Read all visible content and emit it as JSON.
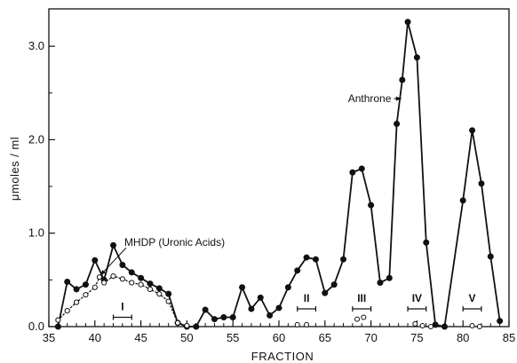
{
  "chart_data": {
    "type": "line",
    "title": "",
    "xlabel": "FRACTION",
    "ylabel": "μmoles / ml",
    "xlim": [
      35,
      85
    ],
    "ylim": [
      0,
      3.4
    ],
    "x_ticks": [
      35,
      40,
      45,
      50,
      55,
      60,
      65,
      70,
      75,
      80,
      85
    ],
    "y_ticks": [
      0.0,
      1.0,
      2.0,
      3.0
    ],
    "y_tick_labels": [
      "0.0",
      "1.0",
      "2.0",
      "3.0"
    ],
    "grid": false,
    "series": [
      {
        "name": "Anthrone",
        "style": "solid-filled",
        "color": "#111111",
        "points": [
          [
            36,
            0.0
          ],
          [
            37,
            0.48
          ],
          [
            38,
            0.4
          ],
          [
            39,
            0.45
          ],
          [
            40,
            0.71
          ],
          [
            41,
            0.5
          ],
          [
            42,
            0.87
          ],
          [
            43,
            0.66
          ],
          [
            44,
            0.58
          ],
          [
            45,
            0.52
          ],
          [
            46,
            0.46
          ],
          [
            47,
            0.41
          ],
          [
            48,
            0.35
          ],
          [
            49,
            0.04
          ],
          [
            50,
            0.0
          ],
          [
            51,
            0.0
          ],
          [
            52,
            0.18
          ],
          [
            53,
            0.08
          ],
          [
            54,
            0.1
          ],
          [
            55,
            0.1
          ],
          [
            56,
            0.42
          ],
          [
            57,
            0.19
          ],
          [
            58,
            0.31
          ],
          [
            59,
            0.12
          ],
          [
            60,
            0.2
          ],
          [
            61,
            0.42
          ],
          [
            62,
            0.6
          ],
          [
            63,
            0.74
          ],
          [
            64,
            0.72
          ],
          [
            65,
            0.36
          ],
          [
            66,
            0.45
          ],
          [
            67,
            0.72
          ],
          [
            68,
            1.65
          ],
          [
            69,
            1.69
          ],
          [
            70,
            1.3
          ],
          [
            71,
            0.47
          ],
          [
            72,
            0.52
          ],
          [
            72.8,
            2.17
          ],
          [
            73.4,
            2.64
          ],
          [
            74,
            3.26
          ],
          [
            75,
            2.88
          ],
          [
            76,
            0.9
          ],
          [
            77,
            0.02
          ],
          [
            78,
            0.0
          ],
          [
            80,
            1.35
          ],
          [
            81,
            2.1
          ],
          [
            82,
            1.53
          ],
          [
            83,
            0.75
          ],
          [
            84,
            0.06
          ]
        ]
      },
      {
        "name": "MHDP (Uronic Acids)",
        "style": "dotted-open",
        "color": "#111111",
        "points": [
          [
            36,
            0.07
          ],
          [
            37,
            0.17
          ],
          [
            38,
            0.26
          ],
          [
            39,
            0.34
          ],
          [
            40,
            0.42
          ],
          [
            40.5,
            0.53
          ],
          [
            41,
            0.47
          ],
          [
            42,
            0.54
          ],
          [
            43,
            0.51
          ],
          [
            44,
            0.47
          ],
          [
            45,
            0.45
          ],
          [
            46,
            0.4
          ],
          [
            47,
            0.35
          ],
          [
            48,
            0.27
          ],
          [
            49,
            0.04
          ],
          [
            50,
            0.01
          ]
        ]
      }
    ],
    "isolated_points": [
      [
        62,
        0.02
      ],
      [
        63,
        0.02
      ],
      [
        68.5,
        0.08
      ],
      [
        69.2,
        0.1
      ],
      [
        74.8,
        0.03
      ],
      [
        75.6,
        0.01
      ],
      [
        76.5,
        0.0
      ],
      [
        81,
        0.01
      ],
      [
        81.8,
        0.0
      ]
    ],
    "annotations": [
      {
        "label": "Anthrone",
        "text_at": [
          72.2,
          2.44
        ],
        "arrow_to": [
          73.3,
          2.44
        ]
      },
      {
        "label": "MHDP (Uronic Acids)",
        "text_at": [
          43.2,
          0.9
        ],
        "arrow_to": [
          40.6,
          0.55
        ]
      }
    ],
    "fraction_labels": [
      {
        "label": "I",
        "x": 43,
        "bar_from": 42,
        "bar_to": 44,
        "y": 0.1
      },
      {
        "label": "II",
        "x": 63,
        "bar_from": 62,
        "bar_to": 64,
        "y": 0.19
      },
      {
        "label": "III",
        "x": 69,
        "bar_from": 68,
        "bar_to": 70,
        "y": 0.19
      },
      {
        "label": "IV",
        "x": 75,
        "bar_from": 74,
        "bar_to": 76,
        "y": 0.19
      },
      {
        "label": "V",
        "x": 81,
        "bar_from": 80,
        "bar_to": 82,
        "y": 0.19
      }
    ]
  }
}
